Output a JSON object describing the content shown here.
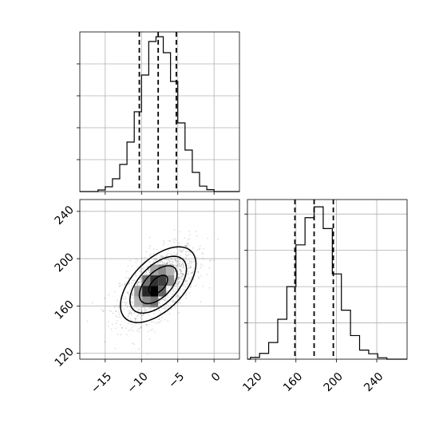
{
  "chart_data": [
    {
      "panel": "top-left",
      "type": "histogram",
      "variable": "x",
      "bin_edges": [
        -16,
        -15,
        -14,
        -13,
        -12,
        -11,
        -10,
        -9,
        -8,
        -7,
        -6,
        -5,
        -4,
        -3,
        -2,
        -1,
        0
      ],
      "counts": [
        0.5,
        1.5,
        4,
        8.5,
        15.5,
        25,
        36.5,
        47,
        48.5,
        43.5,
        34.5,
        21.5,
        13,
        6,
        1.7,
        0.6
      ],
      "quantiles": [
        -10.3,
        -7.7,
        -5.2
      ],
      "xlim": [
        -18.5,
        3.5
      ],
      "ylim": [
        0,
        50
      ],
      "xticks": [
        -15,
        -10,
        -5,
        0
      ],
      "grid": true
    },
    {
      "panel": "bottom-right",
      "type": "histogram",
      "variable": "y",
      "bin_edges": [
        115,
        124,
        133,
        142,
        151,
        160,
        169,
        178,
        187,
        196,
        205,
        214,
        223,
        232,
        241,
        250
      ],
      "counts": [
        0.5,
        1.6,
        4.6,
        11,
        20,
        31.5,
        39,
        42,
        36,
        23.5,
        13.5,
        6.5,
        2.5,
        1.5,
        0.4
      ],
      "quantiles": [
        159,
        178,
        197
      ],
      "xlim": [
        112,
        270
      ],
      "ylim": [
        0,
        44
      ],
      "xticks": [
        120,
        160,
        200,
        240
      ],
      "xtick_labels": [
        "120",
        "160",
        "200",
        "240"
      ],
      "grid": true
    },
    {
      "panel": "bottom-left",
      "type": "2d-density-with-contours",
      "x_variable": "x",
      "y_variable": "y",
      "center": [
        -7.7,
        178
      ],
      "spread": [
        2.6,
        16
      ],
      "correlation": 0.55,
      "contour_levels_sigma": [
        0.5,
        1,
        1.5,
        2
      ],
      "density_cells": [
        {
          "x": [
            -8.8,
            -7.7
          ],
          "y": [
            186,
            195
          ],
          "shade": 0.35
        },
        {
          "x": [
            -7.7,
            -6.6
          ],
          "y": [
            186,
            195
          ],
          "shade": 0.45
        },
        {
          "x": [
            -6.6,
            -5.5
          ],
          "y": [
            186,
            195
          ],
          "shade": 0.3
        },
        {
          "x": [
            -9.9,
            -8.8
          ],
          "y": [
            177,
            186
          ],
          "shade": 0.55
        },
        {
          "x": [
            -8.8,
            -7.7
          ],
          "y": [
            177,
            186
          ],
          "shade": 0.8
        },
        {
          "x": [
            -7.7,
            -6.6
          ],
          "y": [
            177,
            186
          ],
          "shade": 0.75
        },
        {
          "x": [
            -6.6,
            -5.5
          ],
          "y": [
            177,
            186
          ],
          "shade": 0.45
        },
        {
          "x": [
            -11.0,
            -9.9
          ],
          "y": [
            168,
            177
          ],
          "shade": 0.4
        },
        {
          "x": [
            -9.9,
            -8.8
          ],
          "y": [
            168,
            177
          ],
          "shade": 0.85
        },
        {
          "x": [
            -8.8,
            -7.7
          ],
          "y": [
            168,
            177
          ],
          "shade": 1.0
        },
        {
          "x": [
            -7.7,
            -6.6
          ],
          "y": [
            168,
            177
          ],
          "shade": 0.6
        },
        {
          "x": [
            -9.9,
            -8.8
          ],
          "y": [
            159,
            168
          ],
          "shade": 0.45
        },
        {
          "x": [
            -8.8,
            -7.7
          ],
          "y": [
            159,
            168
          ],
          "shade": 0.55
        },
        {
          "x": [
            -11.0,
            -9.9
          ],
          "y": [
            159,
            168
          ],
          "shade": 0.3
        }
      ],
      "xlim": [
        -18.5,
        3.5
      ],
      "ylim": [
        115,
        250
      ],
      "xticks": [
        -15,
        -10,
        -5,
        0
      ],
      "xtick_labels": [
        "−15",
        "−10",
        "−5",
        "0"
      ],
      "yticks": [
        120,
        160,
        200,
        240
      ],
      "ytick_labels": [
        "120",
        "160",
        "200",
        "240"
      ],
      "grid": true
    }
  ]
}
